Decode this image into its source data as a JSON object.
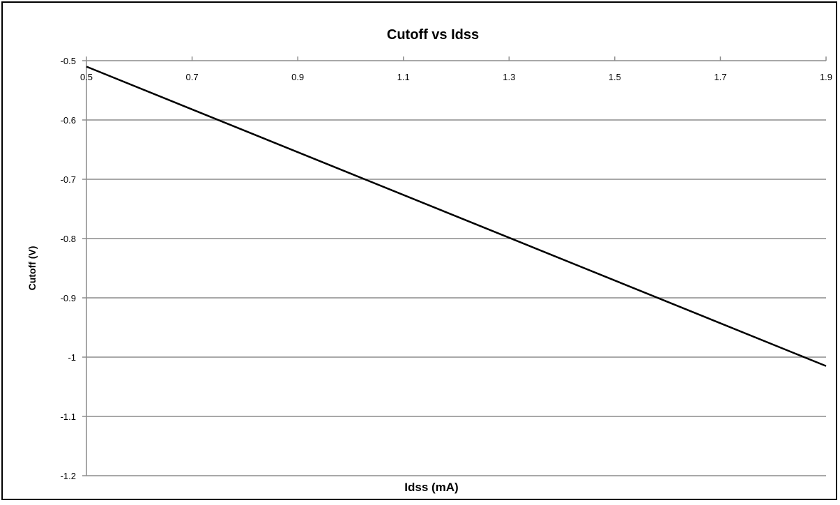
{
  "chart_data": {
    "type": "line",
    "title": "Cutoff vs Idss",
    "xlabel": "Idss (mA)",
    "ylabel": "Cutoff (V)",
    "xlim": [
      0.5,
      1.9
    ],
    "ylim": [
      -1.2,
      -0.5
    ],
    "x_ticks": [
      "0.5",
      "0.7",
      "0.9",
      "1.1",
      "1.3",
      "1.5",
      "1.7",
      "1.9"
    ],
    "y_ticks": [
      "-0.5",
      "-0.6",
      "-0.7",
      "-0.8",
      "-0.9",
      "-1",
      "-1.1",
      "-1.2"
    ],
    "x_axis_position": "top",
    "grid": "horizontal",
    "legend": "none",
    "series": [
      {
        "color": "#000000",
        "x": [
          0.5,
          1.9
        ],
        "y": [
          -0.51,
          -1.015
        ]
      }
    ]
  }
}
